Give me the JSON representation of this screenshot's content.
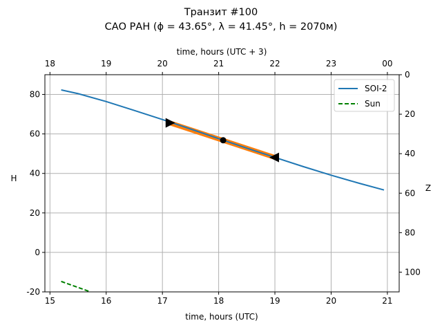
{
  "chart_data": {
    "type": "line",
    "title": "Транзит #100",
    "subtitle": "САО РАН (ϕ = 43.65°, λ = 41.45°, h = 2070м)",
    "xlabel": "time, hours (UTC)",
    "ylabel": "H",
    "top_xlabel": "time, hours (UTC + 3)",
    "right_ylabel": "Z",
    "xlim": [
      14.91,
      21.21
    ],
    "ylim": [
      -20,
      90
    ],
    "grid": true,
    "legend_placement": "top-right",
    "x_ticks": [
      15,
      16,
      17,
      18,
      19,
      20,
      21
    ],
    "y_ticks": [
      -20,
      0,
      20,
      40,
      60,
      80
    ],
    "top_ticks": [
      {
        "x": 15,
        "label": "18"
      },
      {
        "x": 16,
        "label": "19"
      },
      {
        "x": 17,
        "label": "20"
      },
      {
        "x": 18,
        "label": "21"
      },
      {
        "x": 19,
        "label": "22"
      },
      {
        "x": 20,
        "label": "23"
      },
      {
        "x": 21,
        "label": "00"
      }
    ],
    "right_ticks": [
      0,
      20,
      40,
      60,
      80,
      100
    ],
    "series": [
      {
        "name": "SOI-2",
        "color": "#1f77b4",
        "style": "solid",
        "x": [
          15.2,
          15.5,
          16.0,
          16.5,
          17.0,
          17.5,
          18.0,
          18.5,
          19.0,
          19.5,
          20.0,
          20.5,
          20.94
        ],
        "y": [
          82.3,
          80.4,
          76.4,
          71.9,
          67.3,
          62.5,
          57.6,
          52.8,
          48.1,
          43.5,
          39.1,
          35.0,
          31.6
        ]
      },
      {
        "name": "Sun",
        "color": "#008000",
        "style": "dashed",
        "x": [
          15.2,
          15.72
        ],
        "y": [
          -14.7,
          -20
        ]
      }
    ],
    "highlight": {
      "color": "#ff7f0e",
      "x": [
        17.13,
        19.0
      ],
      "y": [
        65.6,
        48.1
      ]
    },
    "markers": [
      {
        "type": "triangle-right",
        "x": 17.13,
        "y": 65.6
      },
      {
        "type": "dot",
        "x": 18.08,
        "y": 56.8
      },
      {
        "type": "triangle-left",
        "x": 19.0,
        "y": 48.1
      }
    ]
  }
}
